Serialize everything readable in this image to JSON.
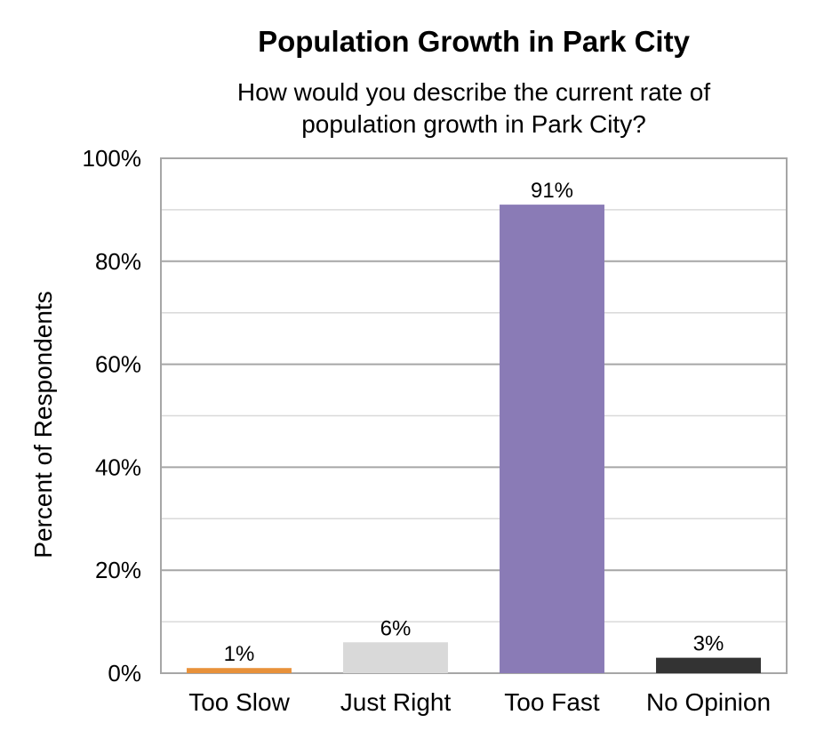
{
  "chart_data": {
    "type": "bar",
    "title": "Population Growth in Park City",
    "subtitle_lines": [
      "How would you describe the current rate of",
      "population growth in Park City?"
    ],
    "xlabel": "",
    "ylabel": "Percent of Respondents",
    "categories": [
      "Too Slow",
      "Just Right",
      "Too Fast",
      "No Opinion"
    ],
    "values": [
      1,
      6,
      91,
      3
    ],
    "data_labels": [
      "1%",
      "6%",
      "91%",
      "3%"
    ],
    "colors": [
      "#E8913A",
      "#D9D9D9",
      "#8A7BB6",
      "#333333"
    ],
    "ylim": [
      0,
      100
    ],
    "yticks": [
      0,
      20,
      40,
      60,
      80,
      100
    ],
    "ytick_labels": [
      "0%",
      "20%",
      "40%",
      "60%",
      "80%",
      "100%"
    ],
    "grid": true
  }
}
